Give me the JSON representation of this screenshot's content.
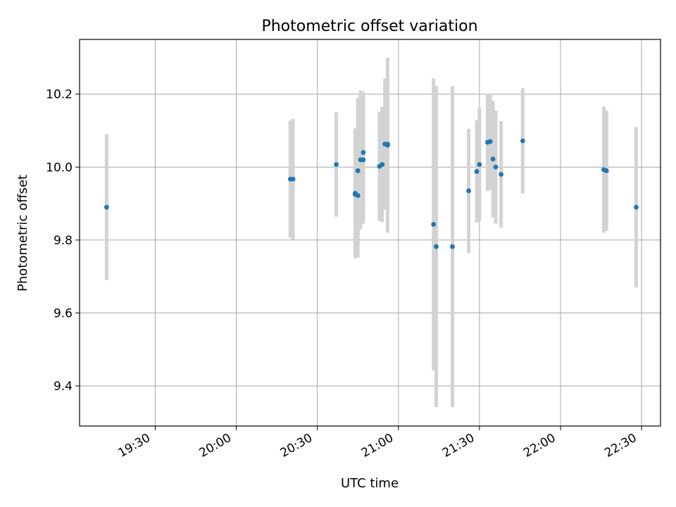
{
  "chart_data": {
    "type": "scatter",
    "title": "Photometric offset variation",
    "xlabel": "UTC time",
    "ylabel": "Photometric offset",
    "x_ticks": [
      "19:30",
      "20:00",
      "20:30",
      "21:00",
      "21:30",
      "22:00",
      "22:30"
    ],
    "y_ticks": [
      "9.4",
      "9.6",
      "9.8",
      "10.0",
      "10.2"
    ],
    "xlim": [
      "19:02",
      "22:37"
    ],
    "ylim": [
      9.29,
      10.35
    ],
    "grid": true,
    "point_color": "#1f77b4",
    "errorbar_color": "#d3d3d3",
    "points": [
      {
        "x": "19:12",
        "y": 9.89,
        "yerr": 0.2
      },
      {
        "x": "20:20",
        "y": 9.967,
        "yerr": 0.16
      },
      {
        "x": "20:21",
        "y": 9.967,
        "yerr": 0.165
      },
      {
        "x": "20:37",
        "y": 10.007,
        "yerr": 0.143
      },
      {
        "x": "20:44",
        "y": 9.928,
        "yerr": 0.178
      },
      {
        "x": "20:44",
        "y": 9.925,
        "yerr": 0.17
      },
      {
        "x": "20:45",
        "y": 9.922,
        "yerr": 0.17
      },
      {
        "x": "20:45",
        "y": 9.99,
        "yerr": 0.2
      },
      {
        "x": "20:46",
        "y": 10.02,
        "yerr": 0.19
      },
      {
        "x": "20:46",
        "y": 10.02,
        "yerr": 0.18
      },
      {
        "x": "20:47",
        "y": 10.02,
        "yerr": 0.175
      },
      {
        "x": "20:47",
        "y": 10.04,
        "yerr": 0.167
      },
      {
        "x": "20:53",
        "y": 10.002,
        "yerr": 0.15
      },
      {
        "x": "20:54",
        "y": 10.007,
        "yerr": 0.158
      },
      {
        "x": "20:55",
        "y": 10.063,
        "yerr": 0.18
      },
      {
        "x": "20:56",
        "y": 10.063,
        "yerr": 0.18
      },
      {
        "x": "20:56",
        "y": 10.06,
        "yerr": 0.24
      },
      {
        "x": "21:13",
        "y": 9.843,
        "yerr": 0.4
      },
      {
        "x": "21:14",
        "y": 9.782,
        "yerr": 0.44
      },
      {
        "x": "21:20",
        "y": 9.782,
        "yerr": 0.44
      },
      {
        "x": "21:26",
        "y": 9.935,
        "yerr": 0.17
      },
      {
        "x": "21:29",
        "y": 9.988,
        "yerr": 0.14
      },
      {
        "x": "21:30",
        "y": 10.007,
        "yerr": 0.155
      },
      {
        "x": "21:33",
        "y": 10.068,
        "yerr": 0.133
      },
      {
        "x": "21:34",
        "y": 10.07,
        "yerr": 0.132
      },
      {
        "x": "21:35",
        "y": 10.022,
        "yerr": 0.16
      },
      {
        "x": "21:36",
        "y": 10.0,
        "yerr": 0.155
      },
      {
        "x": "21:38",
        "y": 9.98,
        "yerr": 0.146
      },
      {
        "x": "21:46",
        "y": 10.072,
        "yerr": 0.144
      },
      {
        "x": "22:16",
        "y": 9.993,
        "yerr": 0.173
      },
      {
        "x": "22:17",
        "y": 9.99,
        "yerr": 0.165
      },
      {
        "x": "22:28",
        "y": 9.89,
        "yerr": 0.22
      }
    ]
  }
}
